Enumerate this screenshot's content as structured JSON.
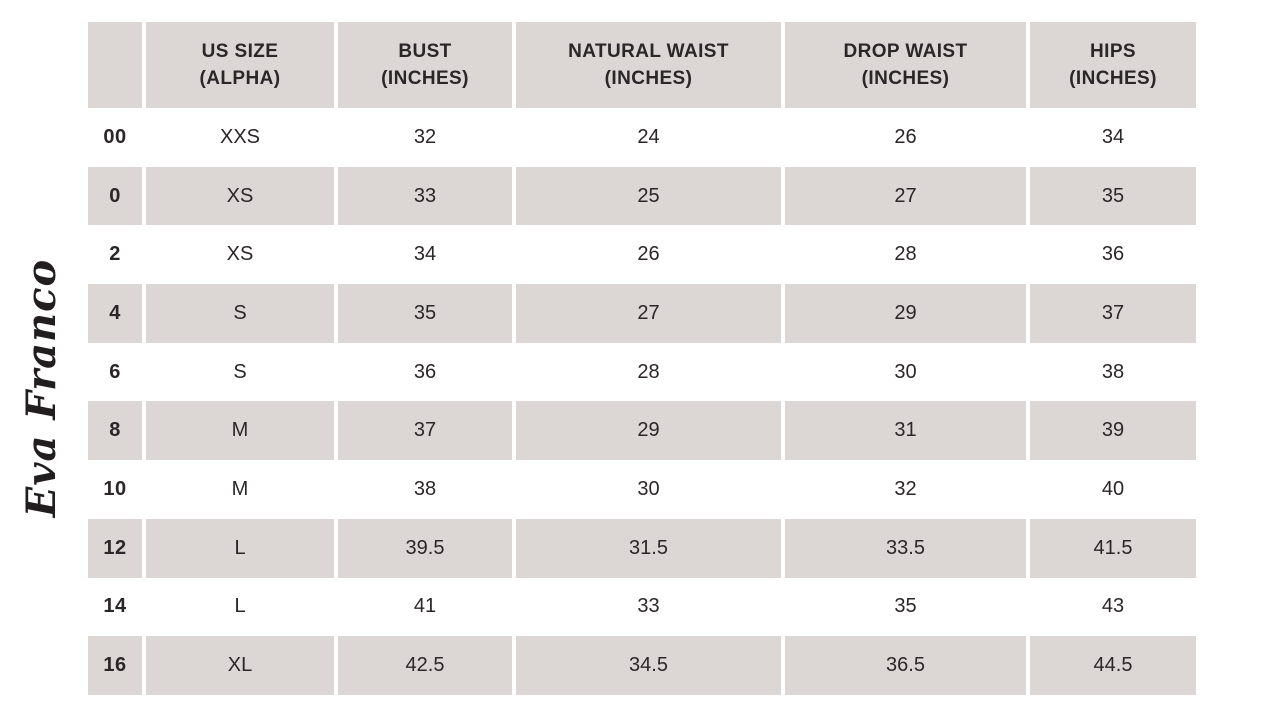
{
  "brand": {
    "logo_text": "Eva Franco"
  },
  "colors": {
    "stripe_and_header_bg": "#dcd7d5",
    "row_bg": "#ffffff",
    "text": "#2b2628",
    "logo": "#221e1f",
    "background": "#ffffff"
  },
  "table": {
    "columns": [
      {
        "label": "",
        "sublabel": ""
      },
      {
        "label": "US SIZE",
        "sublabel": "(ALPHA)"
      },
      {
        "label": "BUST",
        "sublabel": "(INCHES)"
      },
      {
        "label": "NATURAL WAIST",
        "sublabel": "(INCHES)"
      },
      {
        "label": "DROP WAIST",
        "sublabel": "(INCHES)"
      },
      {
        "label": "HIPS",
        "sublabel": "(INCHES)"
      }
    ],
    "rows": [
      {
        "us_size": "00",
        "alpha": "XXS",
        "bust": "32",
        "natural_waist": "24",
        "drop_waist": "26",
        "hips": "34"
      },
      {
        "us_size": "0",
        "alpha": "XS",
        "bust": "33",
        "natural_waist": "25",
        "drop_waist": "27",
        "hips": "35"
      },
      {
        "us_size": "2",
        "alpha": "XS",
        "bust": "34",
        "natural_waist": "26",
        "drop_waist": "28",
        "hips": "36"
      },
      {
        "us_size": "4",
        "alpha": "S",
        "bust": "35",
        "natural_waist": "27",
        "drop_waist": "29",
        "hips": "37"
      },
      {
        "us_size": "6",
        "alpha": "S",
        "bust": "36",
        "natural_waist": "28",
        "drop_waist": "30",
        "hips": "38"
      },
      {
        "us_size": "8",
        "alpha": "M",
        "bust": "37",
        "natural_waist": "29",
        "drop_waist": "31",
        "hips": "39"
      },
      {
        "us_size": "10",
        "alpha": "M",
        "bust": "38",
        "natural_waist": "30",
        "drop_waist": "32",
        "hips": "40"
      },
      {
        "us_size": "12",
        "alpha": "L",
        "bust": "39.5",
        "natural_waist": "31.5",
        "drop_waist": "33.5",
        "hips": "41.5"
      },
      {
        "us_size": "14",
        "alpha": "L",
        "bust": "41",
        "natural_waist": "33",
        "drop_waist": "35",
        "hips": "43"
      },
      {
        "us_size": "16",
        "alpha": "XL",
        "bust": "42.5",
        "natural_waist": "34.5",
        "drop_waist": "36.5",
        "hips": "44.5"
      }
    ]
  }
}
